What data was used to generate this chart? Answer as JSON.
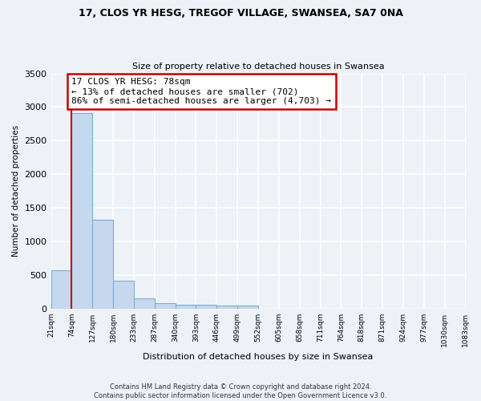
{
  "title_line1": "17, CLOS YR HESG, TREGOF VILLAGE, SWANSEA, SA7 0NA",
  "title_line2": "Size of property relative to detached houses in Swansea",
  "xlabel": "Distribution of detached houses by size in Swansea",
  "ylabel": "Number of detached properties",
  "footnote": "Contains HM Land Registry data © Crown copyright and database right 2024.\nContains public sector information licensed under the Open Government Licence v3.0.",
  "bin_labels": [
    "21sqm",
    "74sqm",
    "127sqm",
    "180sqm",
    "233sqm",
    "287sqm",
    "340sqm",
    "393sqm",
    "446sqm",
    "499sqm",
    "552sqm",
    "605sqm",
    "658sqm",
    "711sqm",
    "764sqm",
    "818sqm",
    "871sqm",
    "924sqm",
    "977sqm",
    "1030sqm",
    "1083sqm"
  ],
  "bar_values": [
    570,
    2910,
    1320,
    410,
    150,
    85,
    60,
    50,
    45,
    40,
    0,
    0,
    0,
    0,
    0,
    0,
    0,
    0,
    0,
    0
  ],
  "bar_color": "#c5d8ee",
  "bar_edge_color": "#7aafd4",
  "annotation_text": "17 CLOS YR HESG: 78sqm\n← 13% of detached houses are smaller (702)\n86% of semi-detached houses are larger (4,703) →",
  "vline_x": 1.0,
  "vline_color": "#cc0000",
  "annotation_box_edge_color": "#cc0000",
  "ylim": [
    0,
    3500
  ],
  "yticks": [
    0,
    500,
    1000,
    1500,
    2000,
    2500,
    3000,
    3500
  ],
  "background_color": "#eef2f7",
  "grid_color": "#ffffff",
  "figsize": [
    6.0,
    5.0
  ],
  "dpi": 100
}
